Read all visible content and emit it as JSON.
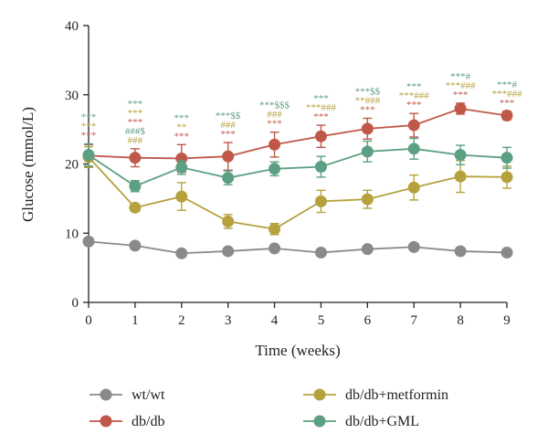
{
  "chart_data": {
    "type": "line",
    "xlabel": "Time (weeks)",
    "ylabel": "Glucose (mmol/L)",
    "xlim": [
      0,
      9
    ],
    "ylim": [
      0,
      40
    ],
    "x": [
      0,
      1,
      2,
      3,
      4,
      5,
      6,
      7,
      8,
      9
    ],
    "x_ticks": [
      "0",
      "1",
      "2",
      "3",
      "4",
      "5",
      "6",
      "7",
      "8",
      "9"
    ],
    "y_ticks": [
      "0",
      "10",
      "20",
      "30",
      "40"
    ],
    "grid": false,
    "legend_position": "bottom",
    "series": [
      {
        "name": "wt/wt",
        "color": "#8a8a8a",
        "values": [
          8.8,
          8.2,
          7.1,
          7.4,
          7.8,
          7.2,
          7.7,
          8.0,
          7.4,
          7.2
        ],
        "errors": [
          0.3,
          0.3,
          0.3,
          0.3,
          0.3,
          0.3,
          0.3,
          0.3,
          0.3,
          0.3
        ]
      },
      {
        "name": "db/db",
        "color": "#c0584a",
        "values": [
          21.2,
          20.9,
          20.8,
          21.1,
          22.8,
          24.0,
          25.1,
          25.6,
          28.0,
          27.0
        ],
        "errors": [
          1.6,
          1.3,
          2.0,
          2.0,
          1.8,
          1.6,
          1.5,
          1.7,
          0.8,
          0.6
        ]
      },
      {
        "name": "db/db+metformin",
        "color": "#b5a23e",
        "values": [
          21.0,
          13.7,
          15.3,
          11.7,
          10.6,
          14.6,
          14.9,
          16.6,
          18.2,
          18.1
        ],
        "errors": [
          1.5,
          0.5,
          2.0,
          1.0,
          0.8,
          1.6,
          1.3,
          1.8,
          2.3,
          1.6
        ]
      },
      {
        "name": "db/db+GML",
        "color": "#5c9f82",
        "values": [
          21.3,
          16.8,
          19.5,
          18.0,
          19.3,
          19.6,
          21.8,
          22.2,
          21.3,
          20.9
        ],
        "errors": [
          1.6,
          0.8,
          1.0,
          1.0,
          1.0,
          1.5,
          1.5,
          1.5,
          1.4,
          1.5
        ]
      }
    ],
    "annotations": [
      {
        "x": 0,
        "lines": [
          {
            "text": "***",
            "color": "#5c9f82"
          },
          {
            "text": "***",
            "color": "#b5a23e"
          },
          {
            "text": "***",
            "color": "#c0584a"
          }
        ]
      },
      {
        "x": 1,
        "lines": [
          {
            "text": "***",
            "color": "#5c9f82"
          },
          {
            "text": "***",
            "color": "#b5a23e"
          },
          {
            "text": "***",
            "color": "#c0584a"
          },
          {
            "text": "###$",
            "color": "#5c9f82"
          },
          {
            "text": "###",
            "color": "#b5a23e"
          }
        ]
      },
      {
        "x": 2,
        "lines": [
          {
            "text": "***",
            "color": "#5c9f82"
          },
          {
            "text": "**",
            "color": "#b5a23e"
          },
          {
            "text": "***",
            "color": "#c0584a"
          }
        ]
      },
      {
        "x": 3,
        "lines": [
          {
            "text": "***$$",
            "color": "#5c9f82"
          },
          {
            "text": "###",
            "color": "#b5a23e"
          },
          {
            "text": "***",
            "color": "#c0584a"
          }
        ]
      },
      {
        "x": 4,
        "lines": [
          {
            "text": "***$$$",
            "color": "#5c9f82"
          },
          {
            "text": "###",
            "color": "#b5a23e"
          },
          {
            "text": "***",
            "color": "#c0584a"
          }
        ]
      },
      {
        "x": 5,
        "lines": [
          {
            "text": "***",
            "color": "#5c9f82"
          },
          {
            "text": "***###",
            "color": "#b5a23e"
          },
          {
            "text": "***",
            "color": "#c0584a"
          }
        ]
      },
      {
        "x": 6,
        "lines": [
          {
            "text": "***$$",
            "color": "#5c9f82"
          },
          {
            "text": "**###",
            "color": "#b5a23e"
          },
          {
            "text": "***",
            "color": "#c0584a"
          }
        ]
      },
      {
        "x": 7,
        "lines": [
          {
            "text": "***",
            "color": "#5c9f82"
          },
          {
            "text": "***###",
            "color": "#b5a23e"
          },
          {
            "text": "***",
            "color": "#c0584a"
          }
        ]
      },
      {
        "x": 8,
        "lines": [
          {
            "text": "***#",
            "color": "#5c9f82"
          },
          {
            "text": "***###",
            "color": "#b5a23e"
          },
          {
            "text": "***",
            "color": "#c0584a"
          }
        ]
      },
      {
        "x": 9,
        "lines": [
          {
            "text": "***#",
            "color": "#5c9f82"
          },
          {
            "text": "***###",
            "color": "#b5a23e"
          },
          {
            "text": "***",
            "color": "#c0584a"
          }
        ]
      }
    ]
  }
}
